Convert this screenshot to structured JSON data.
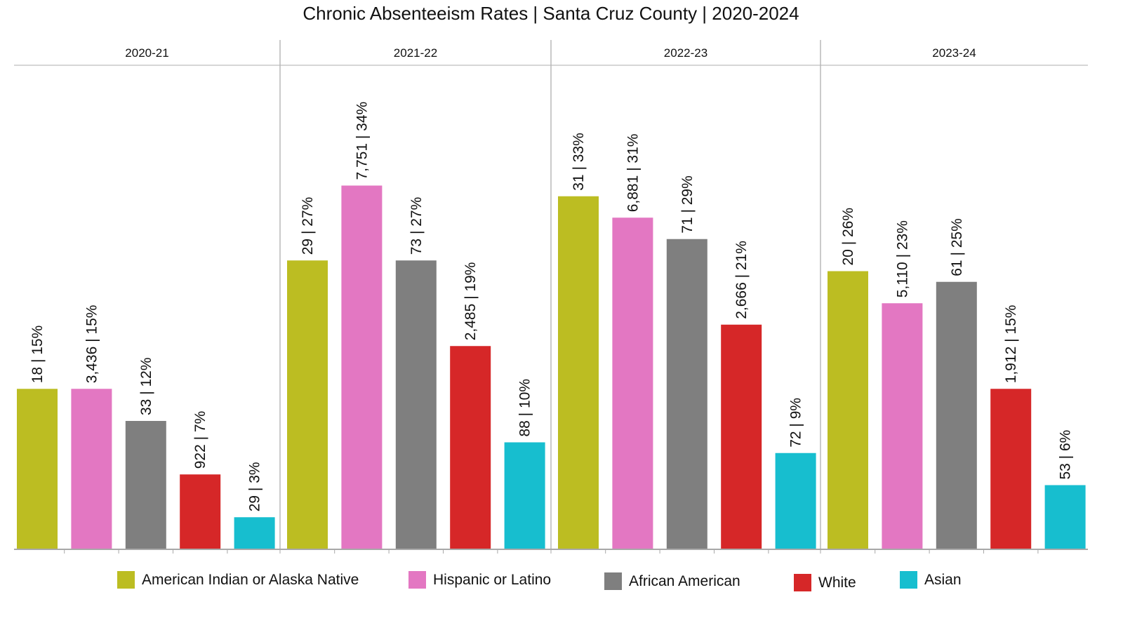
{
  "chart_data": {
    "type": "bar",
    "title": "Chronic Absenteeism Rates | Santa Cruz County | 2020-2024",
    "xlabel": "",
    "ylabel": "",
    "ylim": [
      0,
      35
    ],
    "grid": false,
    "legend_position": "bottom",
    "panels": [
      "2020-21",
      "2021-22",
      "2022-23",
      "2023-24"
    ],
    "series": [
      {
        "name": "American Indian or Alaska Native",
        "color": "#bcbd22",
        "counts": [
          "18",
          "29",
          "31",
          "20"
        ],
        "values": [
          15,
          27,
          33,
          26
        ],
        "labels": [
          "18 | 15%",
          "29 | 27%",
          "31 | 33%",
          "20 | 26%"
        ]
      },
      {
        "name": "Hispanic or Latino",
        "color": "#e377c2",
        "counts": [
          "3,436",
          "7,751",
          "6,881",
          "5,110"
        ],
        "values": [
          15,
          34,
          31,
          23
        ],
        "labels": [
          "3,436 | 15%",
          "7,751 | 34%",
          "6,881 | 31%",
          "5,110 | 23%"
        ]
      },
      {
        "name": "African American",
        "color": "#7f7f7f",
        "counts": [
          "33",
          "73",
          "71",
          "61"
        ],
        "values": [
          12,
          27,
          29,
          25
        ],
        "labels": [
          "33 | 12%",
          "73 | 27%",
          "71 | 29%",
          "61 | 25%"
        ]
      },
      {
        "name": "White",
        "color": "#d62728",
        "counts": [
          "922",
          "2,485",
          "2,666",
          "1,912"
        ],
        "values": [
          7,
          19,
          21,
          15
        ],
        "labels": [
          "922 | 7%",
          "2,485 | 19%",
          "2,666 | 21%",
          "1,912 | 15%"
        ]
      },
      {
        "name": "Asian",
        "color": "#17becf",
        "counts": [
          "29",
          "88",
          "72",
          "53"
        ],
        "values": [
          3,
          10,
          9,
          6
        ],
        "labels": [
          "29 | 3%",
          "88 | 10%",
          "72 | 9%",
          "53 | 6%"
        ]
      }
    ]
  },
  "legend": [
    {
      "label": "American Indian or Alaska Native",
      "color": "#bcbd22"
    },
    {
      "label": "Hispanic or Latino",
      "color": "#e377c2"
    },
    {
      "label": "African American",
      "color": "#7f7f7f"
    },
    {
      "label": "White",
      "color": "#d62728"
    },
    {
      "label": "Asian",
      "color": "#17becf"
    }
  ]
}
